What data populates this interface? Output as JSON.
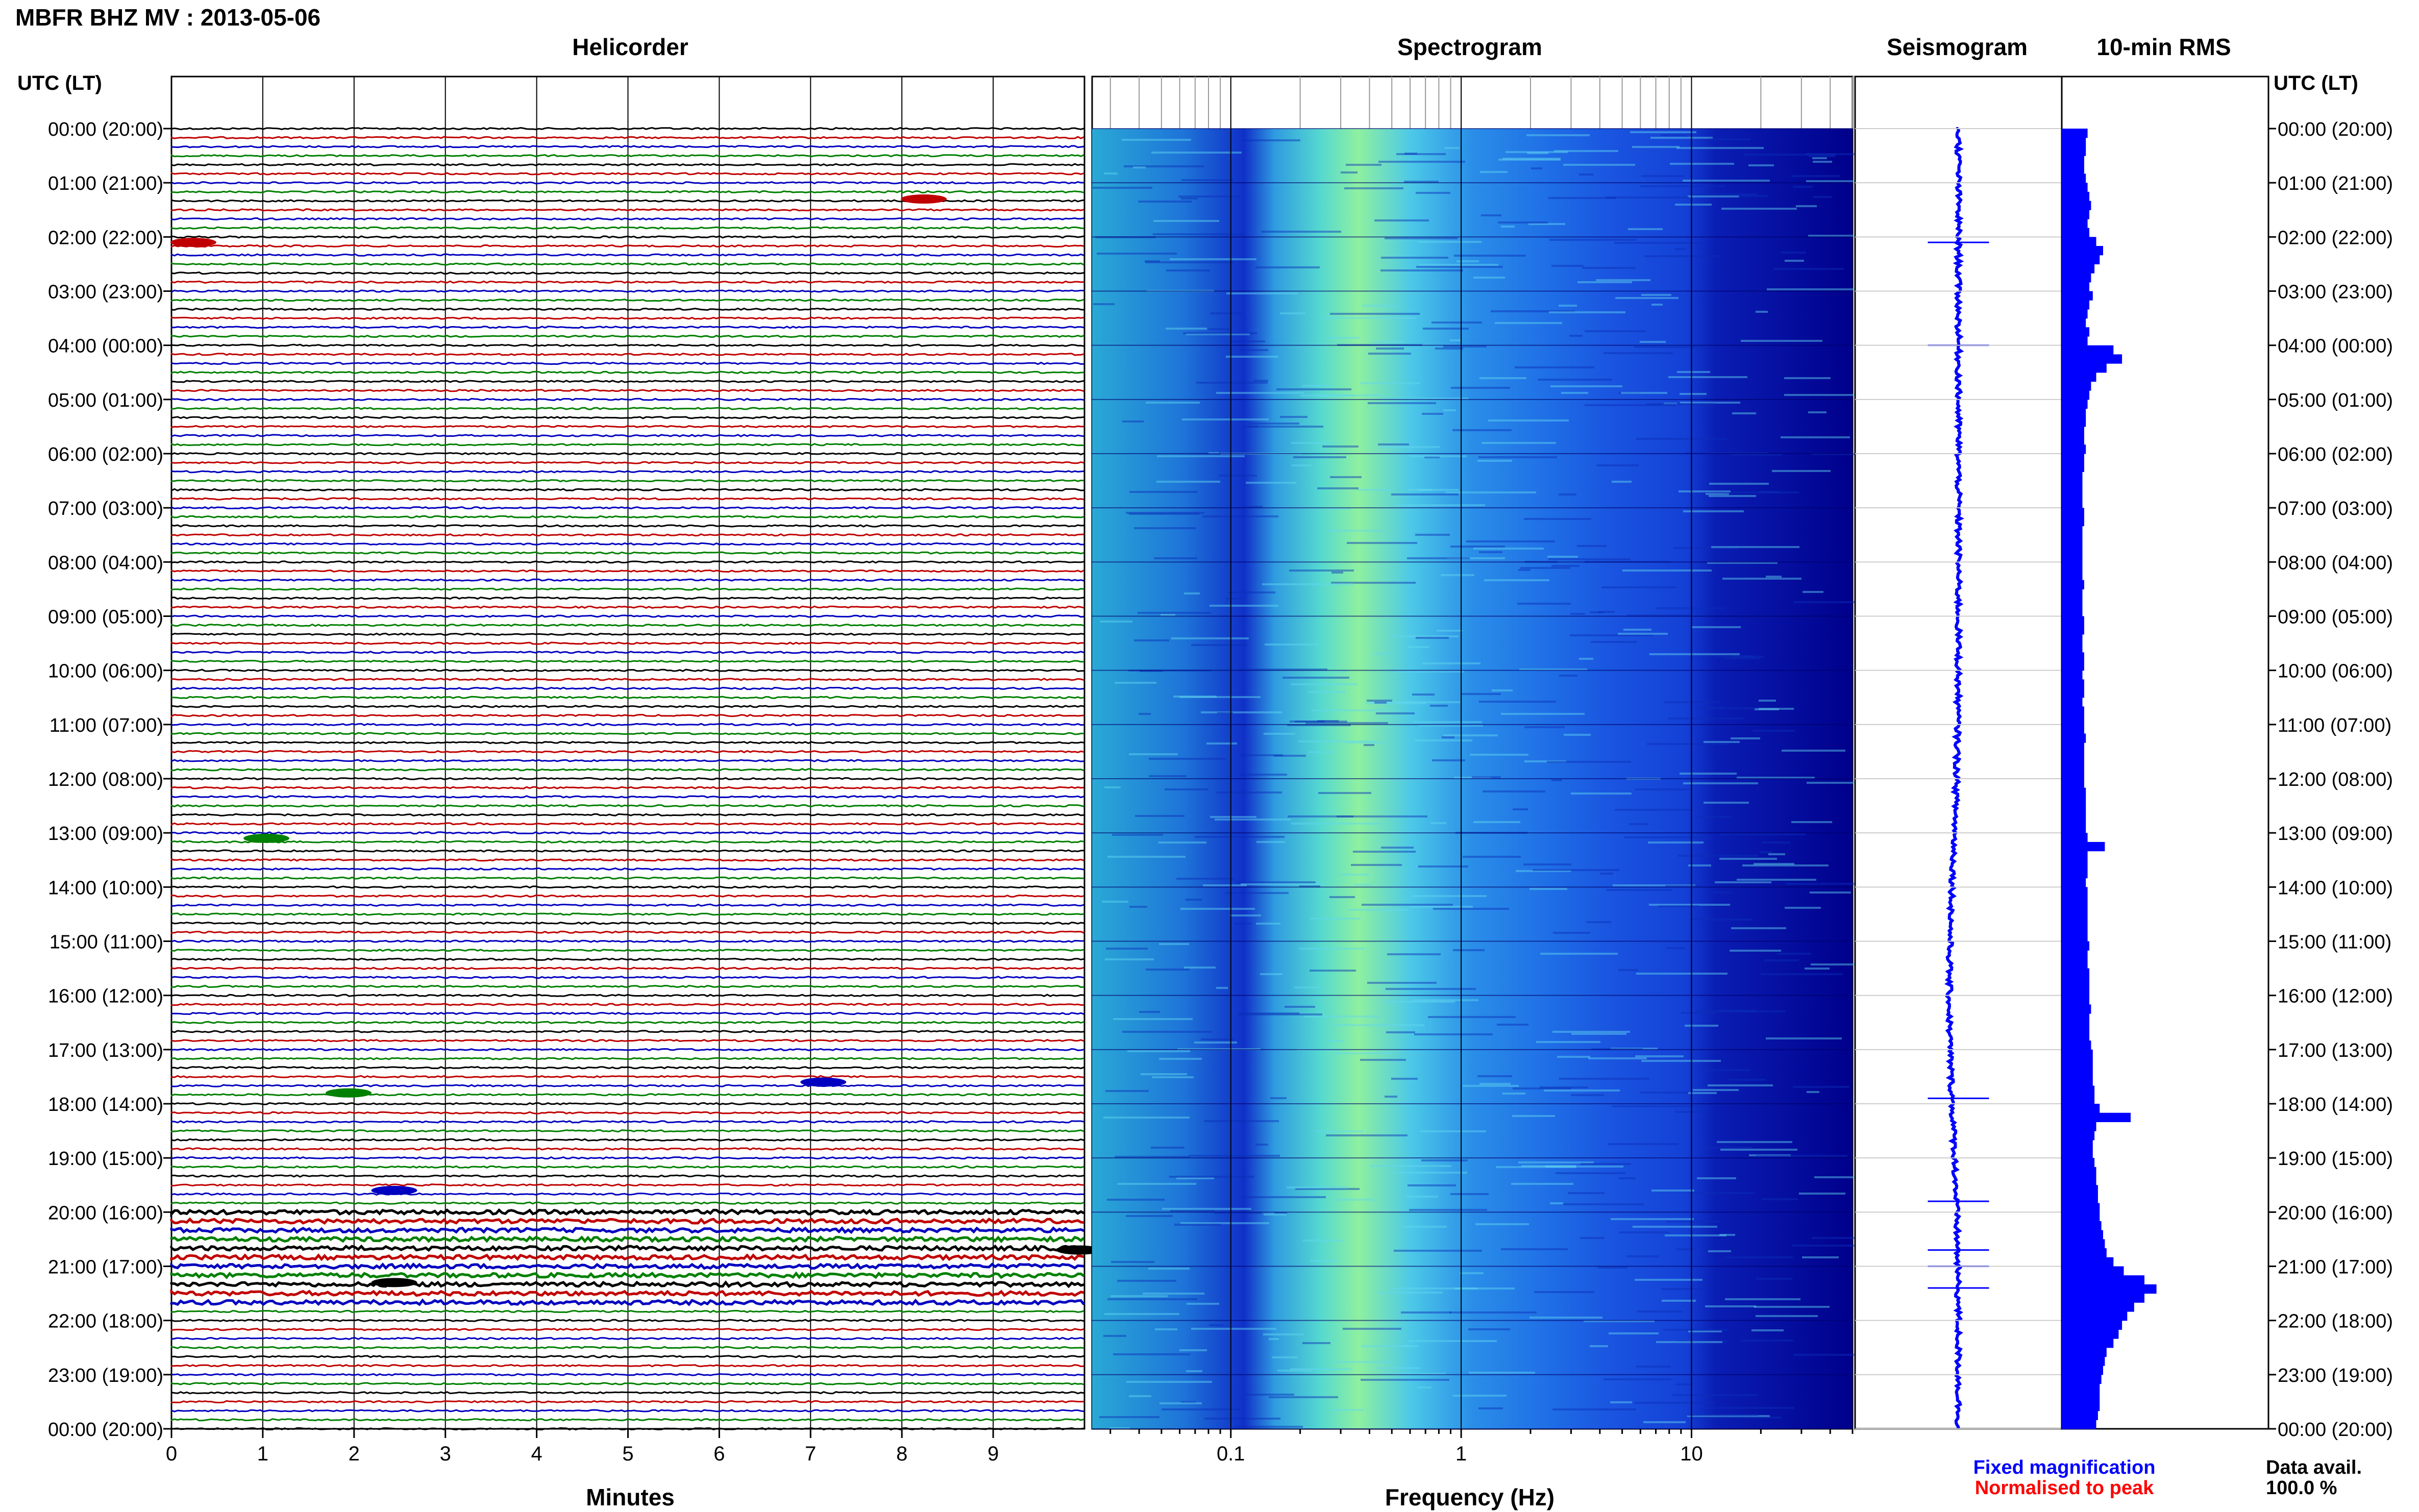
{
  "page_title": "MBFR BHZ MV : 2013-05-06",
  "panels": {
    "helicorder": "Helicorder",
    "spectrogram": "Spectrogram",
    "seismogram": "Seismogram",
    "rms": "10-min RMS"
  },
  "time_axis_label": "UTC (LT)",
  "footer": {
    "fixed": "Fixed magnification",
    "normalised": "Normalised to peak",
    "data_avail_label": "Data avail.",
    "data_avail_value": "100.0 %"
  },
  "colors": {
    "trace_cycle": [
      "#000000",
      "#c00000",
      "#0000c0",
      "#008000"
    ],
    "fixed_text": "#0000ff",
    "normalised_text": "#ff0000",
    "rms_fill": "#0000ff",
    "spec_low": "#00008b",
    "spec_mid": "#1e90ff",
    "spec_high": "#aaff55"
  },
  "chart_data": [
    {
      "type": "line",
      "title": "Helicorder",
      "xlabel": "Minutes",
      "ylabel": "UTC (LT)",
      "x_ticks": [
        "0",
        "1",
        "2",
        "3",
        "4",
        "5",
        "6",
        "7",
        "8",
        "9"
      ],
      "xlim": [
        0,
        10
      ],
      "y_ticks": [
        "00:00 (20:00)",
        "01:00 (21:00)",
        "02:00 (22:00)",
        "03:00 (23:00)",
        "04:00 (00:00)",
        "05:00 (01:00)",
        "06:00 (02:00)",
        "07:00 (03:00)",
        "08:00 (04:00)",
        "09:00 (05:00)",
        "10:00 (06:00)",
        "11:00 (07:00)",
        "12:00 (08:00)",
        "13:00 (09:00)",
        "14:00 (10:00)",
        "15:00 (11:00)",
        "16:00 (12:00)",
        "17:00 (13:00)",
        "18:00 (14:00)",
        "19:00 (15:00)",
        "20:00 (16:00)",
        "21:00 (17:00)",
        "22:00 (18:00)",
        "23:00 (19:00)",
        "00:00 (20:00)"
      ],
      "lines_per_hour": 6,
      "total_lines": 144,
      "grid": true,
      "events": [
        {
          "hour": 1.3,
          "minute": 8.1,
          "color": "red"
        },
        {
          "hour": 2.1,
          "minute": 0.1,
          "color": "red"
        },
        {
          "hour": 13.1,
          "minute": 0.9,
          "color": "green"
        },
        {
          "hour": 17.8,
          "minute": 1.8,
          "color": "green"
        },
        {
          "hour": 17.6,
          "minute": 7.0,
          "color": "blue"
        },
        {
          "hour": 19.6,
          "minute": 2.3,
          "color": "blue"
        },
        {
          "hour": 21.3,
          "minute": 2.3,
          "color": "black"
        },
        {
          "hour": 20.7,
          "minute": 9.8,
          "color": "black"
        }
      ]
    },
    {
      "type": "heatmap",
      "title": "Spectrogram",
      "xlabel": "Frequency (Hz)",
      "ylabel": "UTC (LT)",
      "x_scale": "log",
      "xlim": [
        0.025,
        50
      ],
      "x_ticks": [
        {
          "value": 0.1,
          "label": "0.1"
        },
        {
          "value": 1,
          "label": "1"
        },
        {
          "value": 10,
          "label": "10"
        }
      ],
      "peak_band_hz": [
        0.2,
        0.3
      ],
      "low_power_above_hz": 10,
      "ylim_hours": [
        0,
        24
      ]
    },
    {
      "type": "line",
      "title": "Seismogram",
      "ylim_hours": [
        0,
        24
      ],
      "notable_spikes_hours": [
        2.1,
        4.0,
        17.9,
        19.8,
        20.7,
        21.0,
        21.4
      ]
    },
    {
      "type": "bar",
      "title": "10-min RMS",
      "orientation": "horizontal",
      "ylim_hours": [
        0,
        24
      ],
      "values": [
        1.5,
        1.4,
        1.4,
        1.3,
        1.3,
        1.4,
        1.5,
        1.6,
        1.7,
        1.6,
        1.5,
        1.6,
        2.0,
        2.4,
        2.2,
        1.9,
        1.7,
        1.6,
        1.8,
        1.6,
        1.5,
        1.4,
        1.6,
        1.5,
        3.0,
        3.5,
        2.6,
        2.0,
        1.7,
        1.6,
        1.5,
        1.4,
        1.4,
        1.3,
        1.3,
        1.4,
        1.3,
        1.3,
        1.2,
        1.2,
        1.2,
        1.2,
        1.3,
        1.3,
        1.2,
        1.2,
        1.2,
        1.2,
        1.2,
        1.2,
        1.3,
        1.2,
        1.2,
        1.2,
        1.3,
        1.3,
        1.2,
        1.2,
        1.3,
        1.3,
        1.2,
        1.3,
        1.3,
        1.2,
        1.3,
        1.3,
        1.3,
        1.4,
        1.3,
        1.3,
        1.3,
        1.3,
        1.3,
        1.4,
        1.4,
        1.4,
        1.4,
        1.4,
        1.5,
        2.5,
        1.5,
        1.5,
        1.5,
        1.4,
        1.5,
        1.5,
        1.5,
        1.5,
        1.5,
        1.5,
        1.6,
        1.5,
        1.5,
        1.6,
        1.6,
        1.6,
        1.6,
        1.7,
        1.6,
        1.6,
        1.6,
        1.7,
        1.8,
        1.8,
        1.8,
        1.8,
        1.9,
        1.9,
        2.2,
        4.0,
        2.0,
        1.9,
        1.8,
        1.8,
        1.9,
        2.0,
        2.0,
        2.1,
        2.1,
        2.2,
        2.2,
        2.3,
        2.4,
        2.5,
        2.6,
        3.0,
        3.6,
        4.8,
        5.5,
        4.8,
        4.2,
        3.8,
        3.5,
        3.3,
        3.0,
        2.6,
        2.5,
        2.4,
        2.3,
        2.2,
        2.2,
        2.2,
        2.1,
        2.0
      ]
    }
  ]
}
